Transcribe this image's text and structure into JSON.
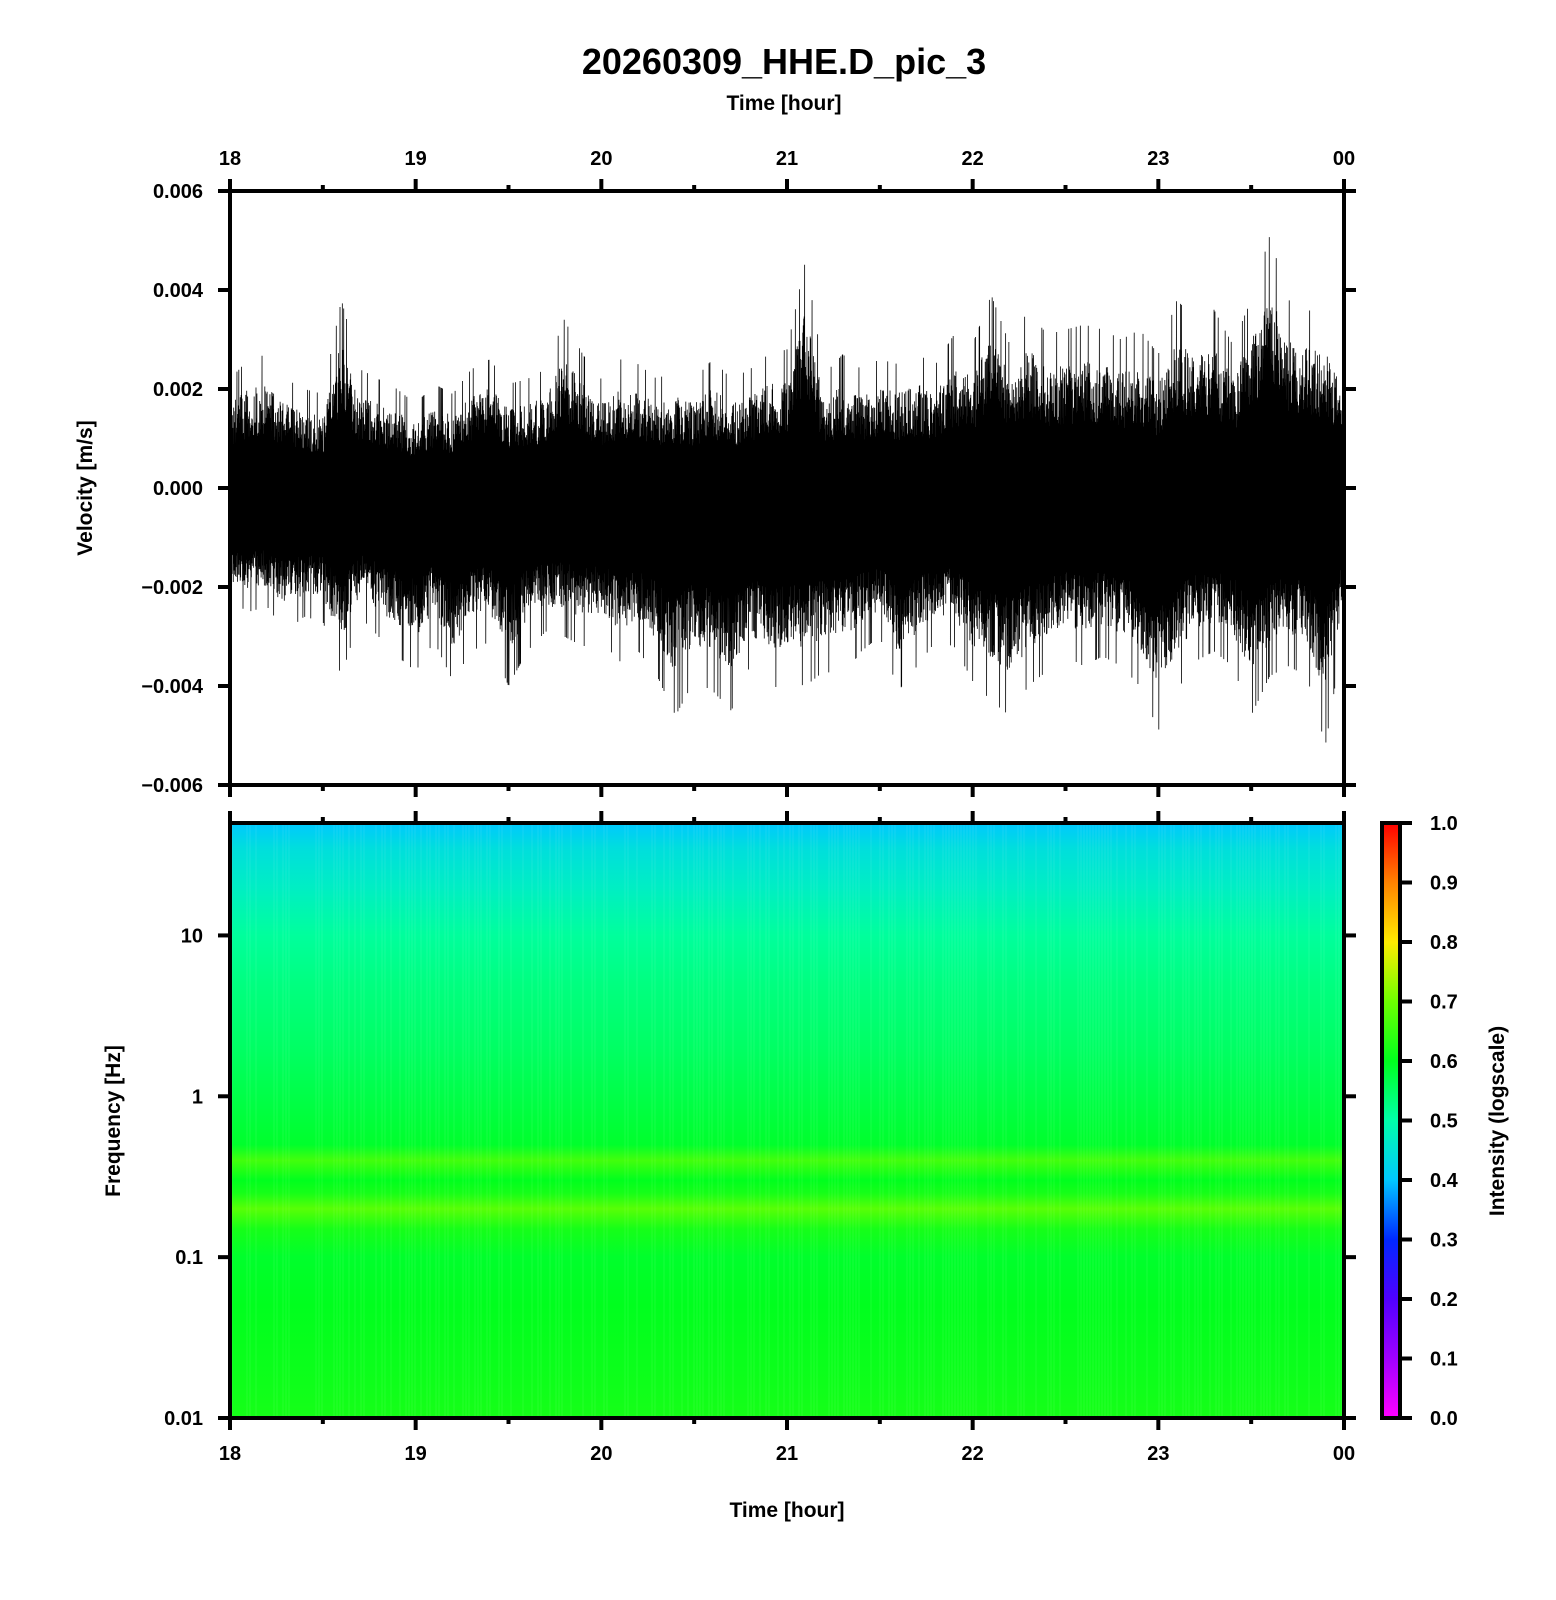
{
  "title": "20260309_HHE.D_pic_3",
  "chart_data": [
    {
      "type": "line",
      "panel": "waveform",
      "xlabel_top": "Time [hour]",
      "ylabel": "Velocity [m/s]",
      "x_ticks": [
        "18",
        "19",
        "20",
        "21",
        "22",
        "23",
        "00"
      ],
      "y_ticks": [
        "0.006",
        "0.004",
        "0.002",
        "0.000",
        "−0.002",
        "−0.004",
        "−0.006"
      ],
      "xlim_hours": [
        18,
        24
      ],
      "ylim": [
        -0.006,
        0.006
      ],
      "series": [
        {
          "envelope_hours": [
            18.0,
            18.1,
            18.2,
            18.3,
            18.4,
            18.5,
            18.6,
            18.7,
            18.8,
            18.9,
            19.0,
            19.1,
            19.2,
            19.3,
            19.4,
            19.5,
            19.6,
            19.7,
            19.8,
            19.9,
            20.0,
            20.1,
            20.2,
            20.3,
            20.4,
            20.5,
            20.6,
            20.7,
            20.8,
            20.9,
            21.0,
            21.1,
            21.2,
            21.3,
            21.4,
            21.5,
            21.6,
            21.7,
            21.8,
            21.9,
            22.0,
            22.1,
            22.2,
            22.3,
            22.4,
            22.5,
            22.6,
            22.7,
            22.8,
            22.9,
            23.0,
            23.1,
            23.2,
            23.3,
            23.4,
            23.5,
            23.6,
            23.7,
            23.8,
            23.9,
            24.0
          ],
          "envelope_max": [
            0.0022,
            0.0026,
            0.0027,
            0.0022,
            0.002,
            0.0019,
            0.0038,
            0.0024,
            0.0022,
            0.002,
            0.0017,
            0.0021,
            0.0019,
            0.0024,
            0.0026,
            0.0021,
            0.0022,
            0.0024,
            0.0034,
            0.0027,
            0.0022,
            0.0026,
            0.0025,
            0.0022,
            0.0024,
            0.0022,
            0.0026,
            0.0022,
            0.0024,
            0.0027,
            0.0028,
            0.0046,
            0.0023,
            0.0027,
            0.0024,
            0.0026,
            0.0025,
            0.0027,
            0.0025,
            0.0031,
            0.0029,
            0.0039,
            0.0029,
            0.0036,
            0.0031,
            0.0032,
            0.0033,
            0.0032,
            0.003,
            0.0032,
            0.0027,
            0.0038,
            0.0034,
            0.0036,
            0.0029,
            0.0038,
            0.0051,
            0.0038,
            0.0036,
            0.0035,
            0.0025
          ],
          "envelope_min": [
            -0.0023,
            -0.0025,
            -0.0024,
            -0.0029,
            -0.0026,
            -0.0027,
            -0.0038,
            -0.0026,
            -0.003,
            -0.0034,
            -0.0037,
            -0.0031,
            -0.0039,
            -0.0033,
            -0.0031,
            -0.004,
            -0.0033,
            -0.0029,
            -0.003,
            -0.0032,
            -0.0031,
            -0.0035,
            -0.0033,
            -0.0038,
            -0.0046,
            -0.0039,
            -0.0041,
            -0.0045,
            -0.0036,
            -0.0041,
            -0.0039,
            -0.004,
            -0.0037,
            -0.0038,
            -0.0033,
            -0.003,
            -0.0041,
            -0.0036,
            -0.0031,
            -0.0032,
            -0.0039,
            -0.0043,
            -0.0046,
            -0.004,
            -0.0037,
            -0.0034,
            -0.0036,
            -0.0034,
            -0.0036,
            -0.004,
            -0.0049,
            -0.0041,
            -0.0035,
            -0.0033,
            -0.0036,
            -0.0046,
            -0.0038,
            -0.0036,
            -0.0038,
            -0.0052,
            -0.0029
          ]
        }
      ]
    },
    {
      "type": "heatmap",
      "panel": "spectrogram",
      "xlabel": "Time [hour]",
      "ylabel": "Frequency [Hz]",
      "x_ticks": [
        "18",
        "19",
        "20",
        "21",
        "22",
        "23",
        "00"
      ],
      "y_ticks": [
        "10",
        "1",
        "0.1",
        "0.01"
      ],
      "yscale": "log",
      "ylim_hz": [
        0.01,
        50
      ],
      "xlim_hours": [
        18,
        24
      ],
      "intensity_profile": {
        "freq_hz": [
          0.01,
          0.02,
          0.05,
          0.1,
          0.15,
          0.2,
          0.25,
          0.3,
          0.4,
          0.5,
          0.7,
          1,
          2,
          5,
          10,
          20,
          35,
          50
        ],
        "intensity": [
          0.62,
          0.61,
          0.6,
          0.59,
          0.62,
          0.68,
          0.62,
          0.6,
          0.66,
          0.59,
          0.58,
          0.57,
          0.55,
          0.53,
          0.51,
          0.47,
          0.44,
          0.4
        ]
      },
      "colorbar": {
        "label": "Intensity (logscale)",
        "ticks": [
          "1.0",
          "0.9",
          "0.8",
          "0.7",
          "0.6",
          "0.5",
          "0.4",
          "0.3",
          "0.2",
          "0.1",
          "0.0"
        ],
        "range": [
          0.0,
          1.0
        ]
      }
    }
  ]
}
